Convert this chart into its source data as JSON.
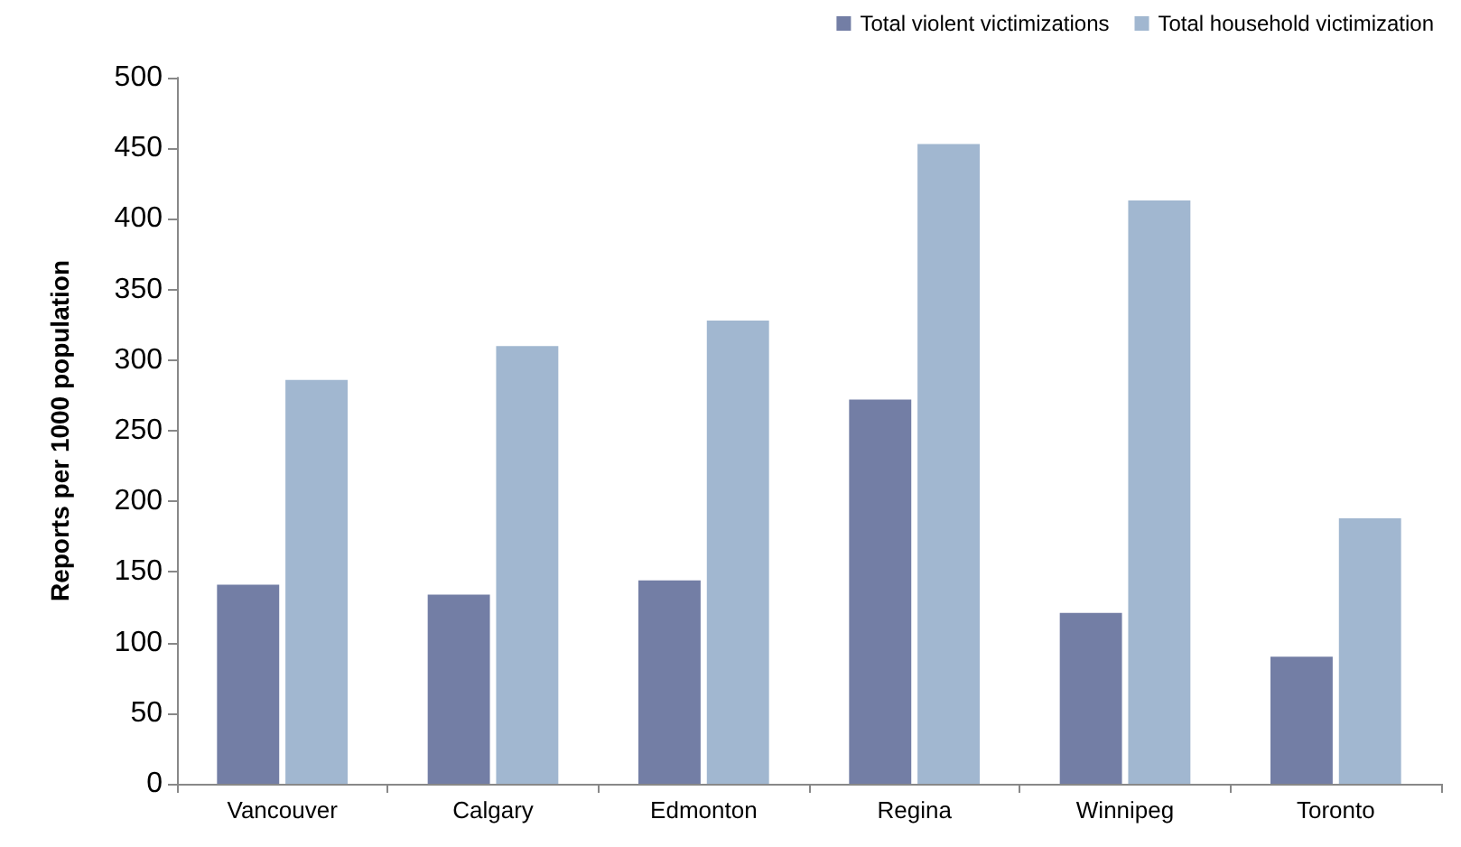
{
  "chart_data": {
    "type": "bar",
    "ylabel": "Reports per 1000 population",
    "categories": [
      "Vancouver",
      "Calgary",
      "Edmonton",
      "Regina",
      "Winnipeg",
      "Toronto"
    ],
    "series": [
      {
        "name": "Total violent victimizations",
        "color": "#737ea5",
        "values": [
          141,
          134,
          144,
          272,
          121,
          90
        ]
      },
      {
        "name": "Total household victimization",
        "color": "#a1b7d0",
        "values": [
          286,
          310,
          328,
          453,
          413,
          188
        ]
      }
    ],
    "ylim": [
      0,
      500
    ],
    "yticks": [
      0,
      50,
      100,
      150,
      200,
      250,
      300,
      350,
      400,
      450,
      500
    ],
    "grid": false,
    "legend": "top right"
  }
}
